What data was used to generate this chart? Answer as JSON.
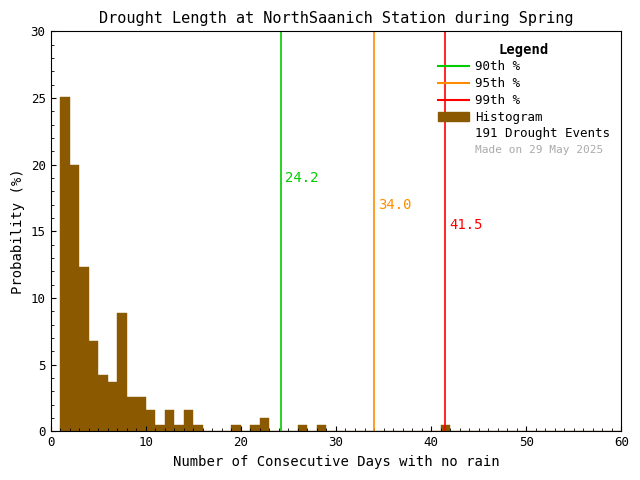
{
  "title": "Drought Length at NorthSaanich Station during Spring",
  "xlabel": "Number of Consecutive Days with no rain",
  "ylabel": "Probability (%)",
  "xlim": [
    0,
    60
  ],
  "ylim": [
    0,
    30
  ],
  "xticks": [
    0,
    10,
    20,
    30,
    40,
    50,
    60
  ],
  "yticks": [
    0,
    5,
    10,
    15,
    20,
    25,
    30
  ],
  "bar_color": "#8B5A00",
  "bar_edgecolor": "#8B5A00",
  "background_color": "#ffffff",
  "percentile_90": 24.2,
  "percentile_95": 34.0,
  "percentile_99": 41.5,
  "percentile_90_color": "#00CC00",
  "percentile_95_color": "#FF8C00",
  "percentile_99_color": "#FF0000",
  "percentile_90_label_color": "#00CC00",
  "percentile_95_label_color": "#FF8C00",
  "percentile_99_label_color": "#FF0000",
  "n_events": 191,
  "date_text": "Made on 29 May 2025",
  "date_color": "#aaaaaa",
  "bin_width": 1,
  "bin_probabilities": {
    "1": 25.1,
    "2": 20.0,
    "3": 12.3,
    "4": 6.8,
    "5": 4.2,
    "6": 3.7,
    "7": 8.9,
    "8": 2.6,
    "9": 2.6,
    "10": 1.6,
    "11": 0.5,
    "12": 1.6,
    "13": 0.5,
    "14": 1.6,
    "15": 0.5,
    "16": 0.0,
    "17": 0.0,
    "18": 0.0,
    "19": 0.5,
    "20": 0.0,
    "21": 0.5,
    "22": 1.0,
    "23": 0.0,
    "24": 0.0,
    "25": 0.0,
    "26": 0.5,
    "27": 0.0,
    "28": 0.5,
    "29": 0.0,
    "30": 0.0,
    "31": 0.0,
    "32": 0.0,
    "33": 0.0,
    "34": 0.0,
    "35": 0.0,
    "36": 0.0,
    "37": 0.0,
    "38": 0.0,
    "39": 0.0,
    "40": 0.0,
    "41": 0.5,
    "42": 0.0,
    "43": 0.0,
    "44": 0.0,
    "45": 0.0,
    "46": 0.0,
    "47": 0.0,
    "48": 0.0,
    "49": 0.0,
    "50": 0.0,
    "51": 0.0,
    "52": 0.0,
    "53": 0.0,
    "54": 0.0,
    "55": 0.0,
    "56": 0.0,
    "57": 0.0,
    "58": 0.0,
    "59": 0.0
  }
}
